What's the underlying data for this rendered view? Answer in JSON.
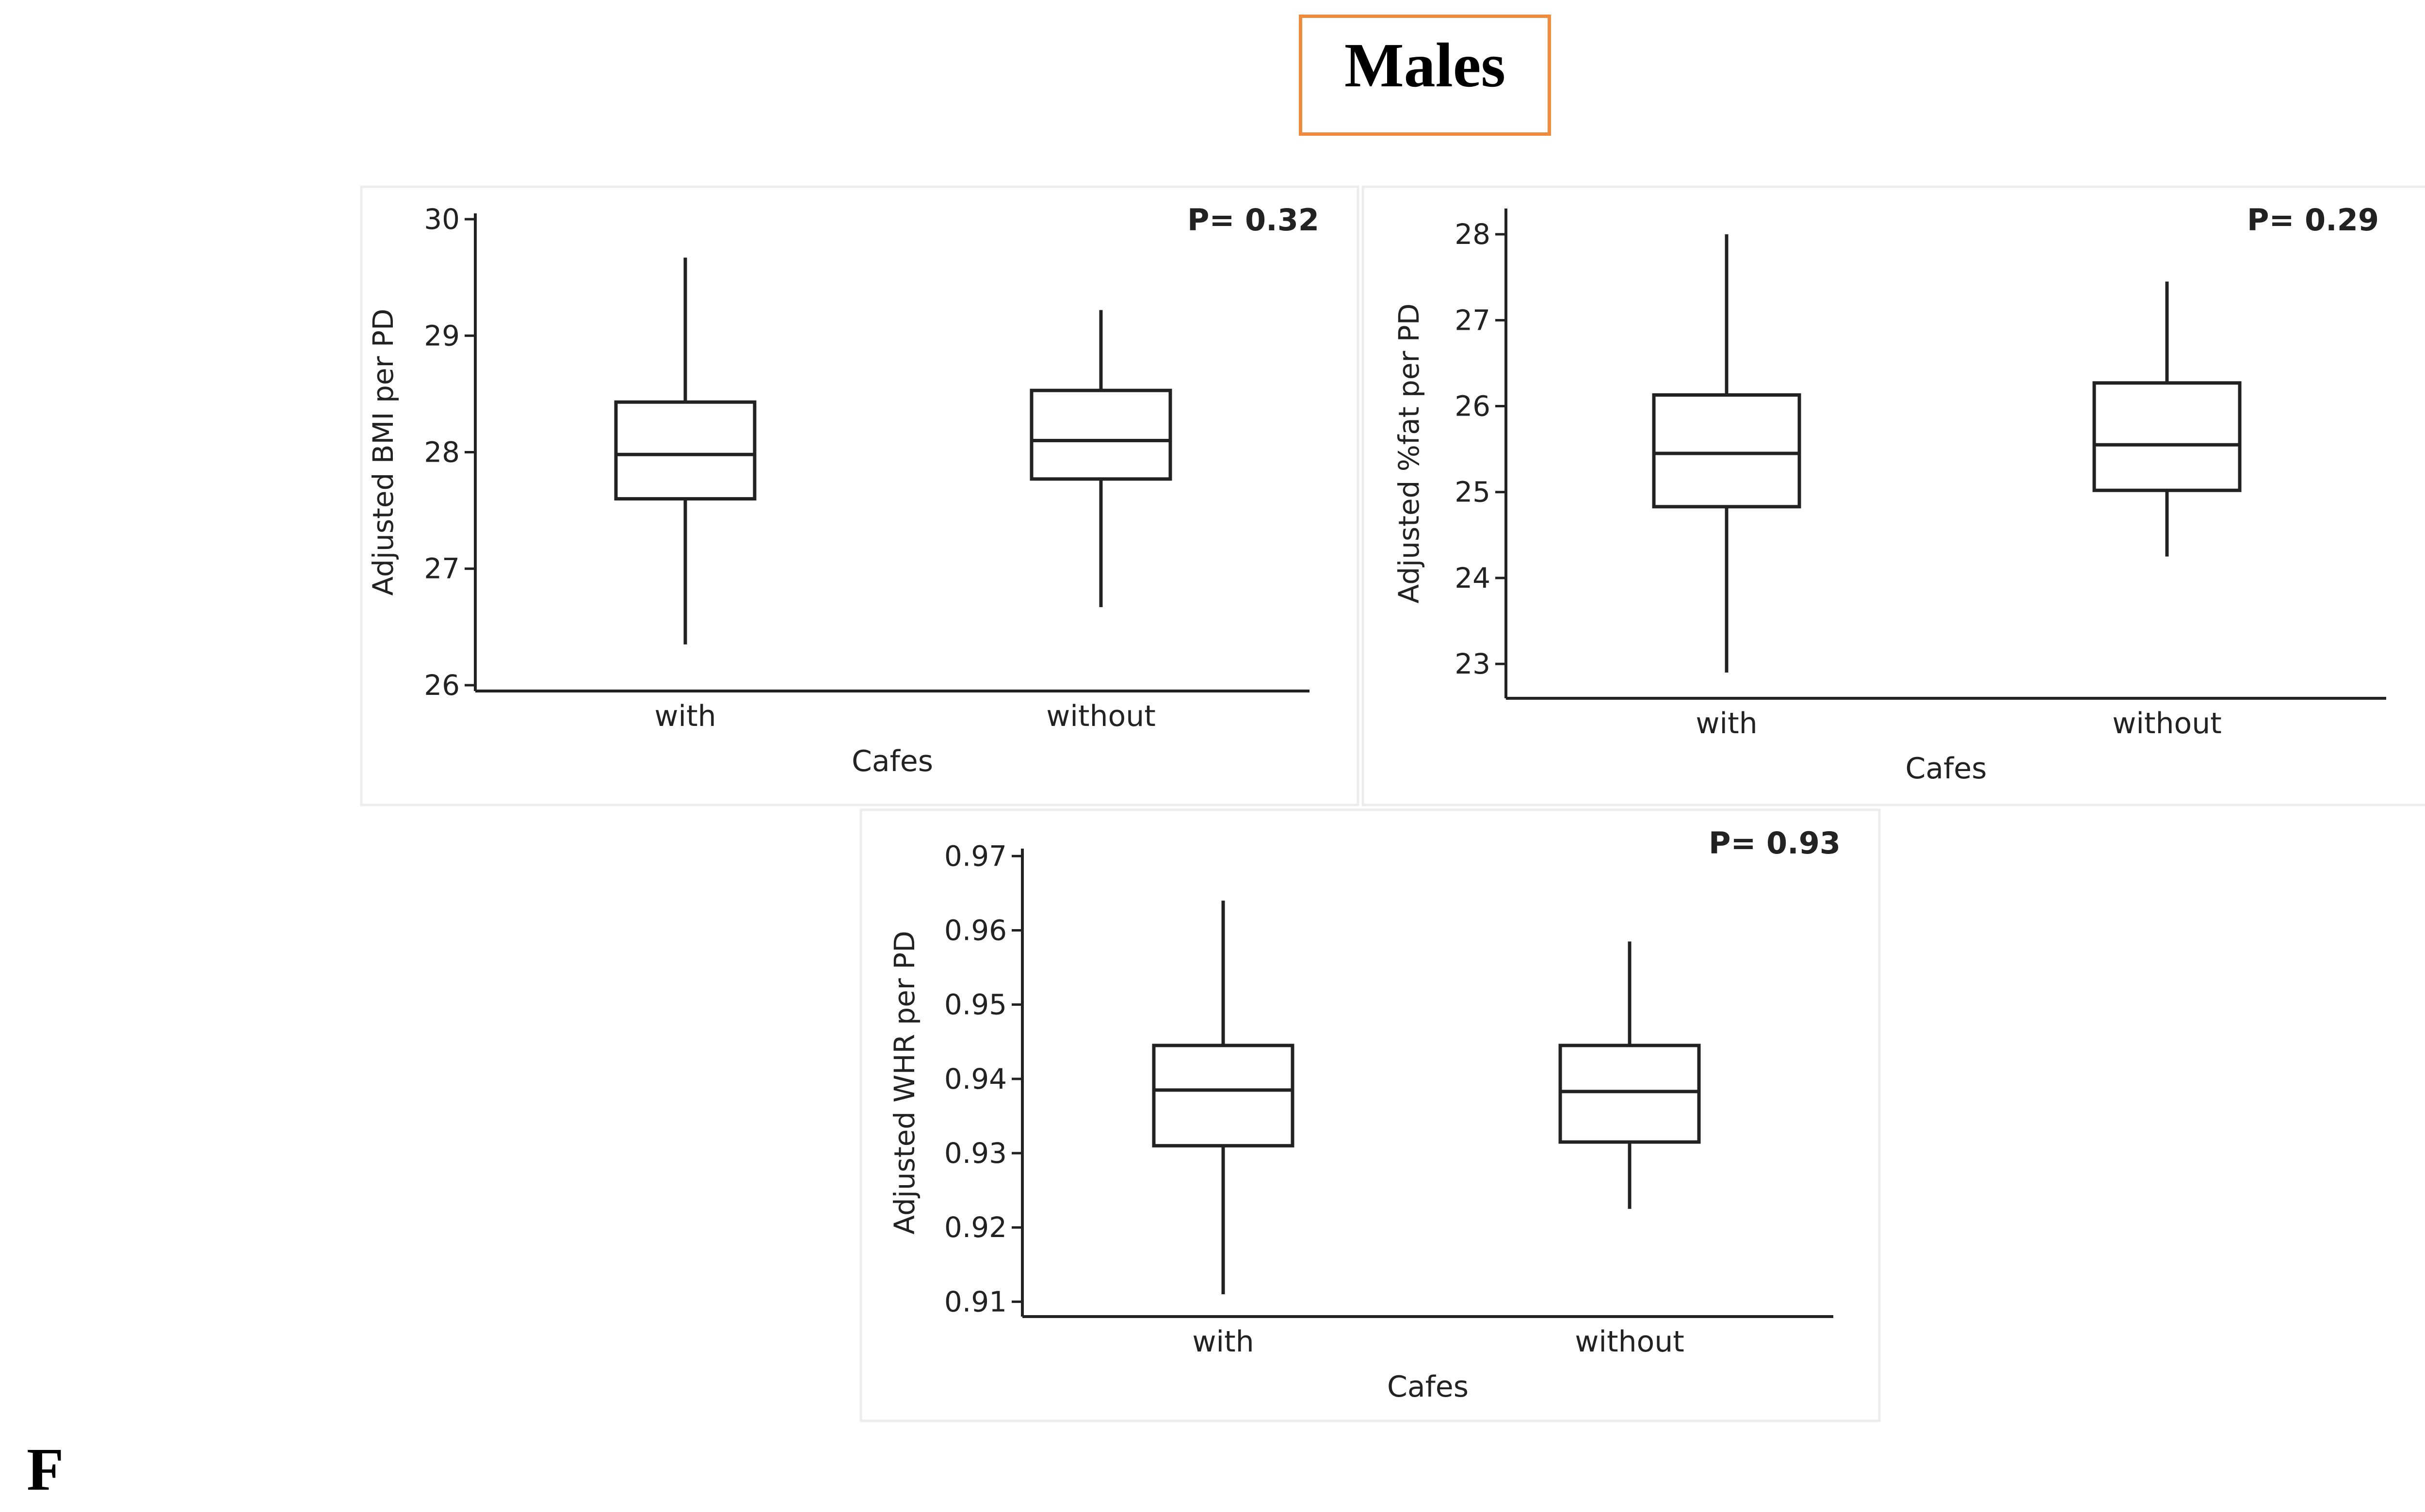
{
  "figure": {
    "title": "Males",
    "panel_label": "F"
  },
  "chart_data": [
    {
      "type": "box",
      "title": "",
      "xlabel": "Cafes",
      "ylabel": "Adjusted BMI per PD",
      "annotation": "P= 0.32",
      "categories": [
        "with",
        "without"
      ],
      "ylim": [
        25.95,
        30.05
      ],
      "yticks": [
        26,
        27,
        28,
        29,
        30
      ],
      "boxes": [
        {
          "name": "with",
          "whisker_low": 26.35,
          "q1": 27.6,
          "median": 27.98,
          "q3": 28.43,
          "whisker_high": 29.67
        },
        {
          "name": "without",
          "whisker_low": 26.67,
          "q1": 27.77,
          "median": 28.1,
          "q3": 28.53,
          "whisker_high": 29.22
        }
      ]
    },
    {
      "type": "box",
      "title": "",
      "xlabel": "Cafes",
      "ylabel": "Adjusted %fat per PD",
      "annotation": "P= 0.29",
      "categories": [
        "with",
        "without"
      ],
      "ylim": [
        22.6,
        28.3
      ],
      "yticks": [
        23,
        24,
        25,
        26,
        27,
        28
      ],
      "boxes": [
        {
          "name": "with",
          "whisker_low": 22.9,
          "q1": 24.83,
          "median": 25.45,
          "q3": 26.13,
          "whisker_high": 28.0
        },
        {
          "name": "without",
          "whisker_low": 24.25,
          "q1": 25.02,
          "median": 25.55,
          "q3": 26.27,
          "whisker_high": 27.45
        }
      ]
    },
    {
      "type": "box",
      "title": "",
      "xlabel": "Cafes",
      "ylabel": "Adjusted WHR per PD",
      "annotation": "P= 0.93",
      "categories": [
        "with",
        "without"
      ],
      "ylim": [
        0.908,
        0.971
      ],
      "yticks": [
        0.91,
        0.92,
        0.93,
        0.94,
        0.95,
        0.96,
        0.97
      ],
      "yticklabels": [
        "0.91",
        "0.92",
        "0.93",
        "0.94",
        "0.95",
        "0.96",
        "0.97"
      ],
      "boxes": [
        {
          "name": "with",
          "whisker_low": 0.911,
          "q1": 0.931,
          "median": 0.9385,
          "q3": 0.9445,
          "whisker_high": 0.964
        },
        {
          "name": "without",
          "whisker_low": 0.9225,
          "q1": 0.9315,
          "median": 0.9383,
          "q3": 0.9445,
          "whisker_high": 0.9585
        }
      ]
    }
  ]
}
